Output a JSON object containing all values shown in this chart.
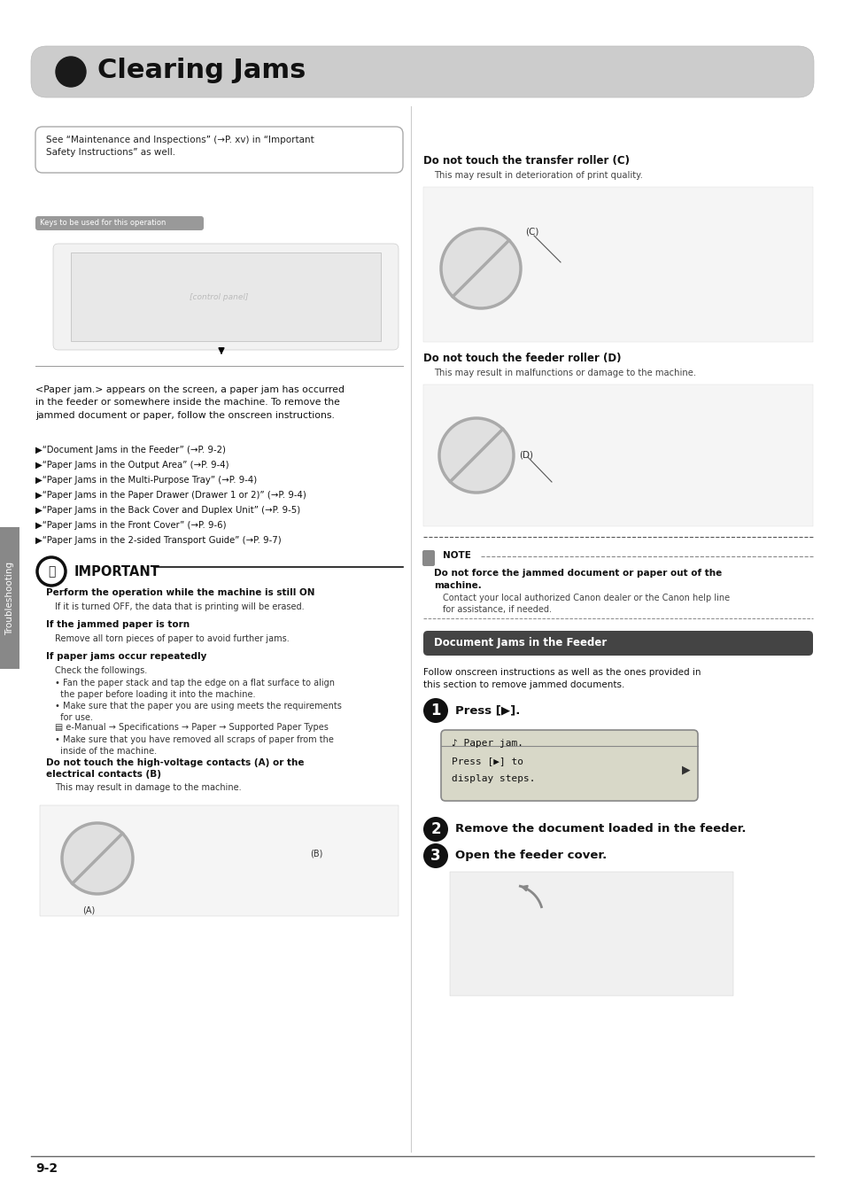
{
  "title": "Clearing Jams",
  "bg_color": "#ffffff",
  "page_num": "9-2",
  "fig_w": 9.54,
  "fig_h": 13.5,
  "dpi": 100,
  "header": {
    "bg": "#cccccc",
    "bullet_color": "#1a1a1a",
    "title_color": "#111111",
    "title_size": 20
  },
  "note_box_text": "See “Maintenance and Inspections” (→P. xv) in “Important\nSafety Instructions” as well.",
  "keys_label": "Keys to be used for this operation",
  "intro_text": "<Paper jam.> appears on the screen, a paper jam has occurred\nin the feeder or somewhere inside the machine. To remove the\njammed document or paper, follow the onscreen instructions.",
  "links": [
    "▶“Document Jams in the Feeder” (→P. 9-2)",
    "▶“Paper Jams in the Output Area” (→P. 9-4)",
    "▶“Paper Jams in the Multi-Purpose Tray” (→P. 9-4)",
    "▶“Paper Jams in the Paper Drawer (Drawer 1 or 2)” (→P. 9-4)",
    "▶“Paper Jams in the Back Cover and Duplex Unit” (→P. 9-5)",
    "▶“Paper Jams in the Front Cover” (→P. 9-6)",
    "▶“Paper Jams in the 2-sided Transport Guide” (→P. 9-7)"
  ],
  "right_section1_title": "Do not touch the transfer roller (C)",
  "right_section1_sub": "This may result in deterioration of print quality.",
  "right_section2_title": "Do not touch the feeder roller (D)",
  "right_section2_sub": "This may result in malfunctions or damage to the machine.",
  "note_bold": "Do not force the jammed document or paper out of the\nmachine.",
  "note_normal": "Contact your local authorized Canon dealer or the Canon help line\nfor assistance, if needed.",
  "doc_jams_title": "Document Jams in the Feeder",
  "doc_jams_intro": "Follow onscreen instructions as well as the ones provided in\nthis section to remove jammed documents.",
  "step1_text": "Press [▶].",
  "lcd_lines": [
    "♪ Paper jam.",
    "Press [▶] to",
    "display steps."
  ],
  "step2_text": "Remove the document loaded in the feeder.",
  "step3_text": "Open the feeder cover.",
  "imp_title": "IMPORTANT",
  "imp1_bold": "Perform the operation while the machine is still ON",
  "imp1_normal": "If it is turned OFF, the data that is printing will be erased.",
  "imp2_bold": "If the jammed paper is torn",
  "imp2_normal": "Remove all torn pieces of paper to avoid further jams.",
  "imp3_bold": "If paper jams occur repeatedly",
  "imp3_normal1": "Check the followings.",
  "imp3_bullet1": "• Fan the paper stack and tap the edge on a flat surface to align\n  the paper before loading it into the machine.",
  "imp3_bullet2": "• Make sure that the paper you are using meets the requirements\n  for use.",
  "imp3_ref": "▤ e-Manual → Specifications → Paper → Supported Paper Types",
  "imp3_bullet3": "• Make sure that you have removed all scraps of paper from the\n  inside of the machine.",
  "imp4_bold": "Do not touch the high-voltage contacts (A) or the\nelectrical contacts (B)",
  "imp4_normal": "This may result in damage to the machine."
}
